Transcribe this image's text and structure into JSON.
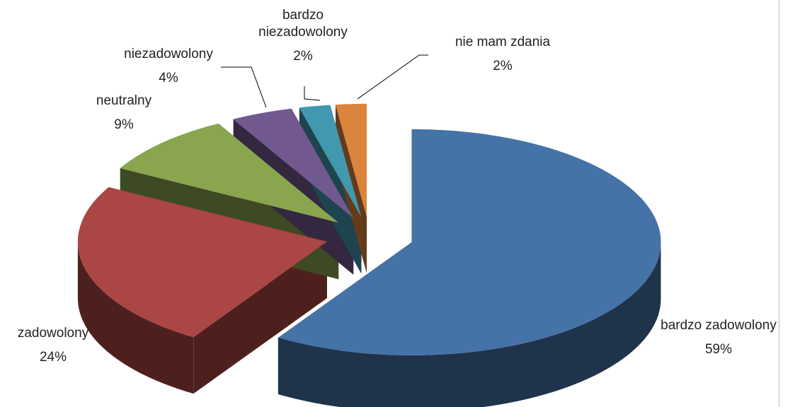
{
  "chart_data": {
    "type": "pie",
    "categories": [
      "bardzo zadowolony",
      "zadowolony",
      "neutralny",
      "niezadowolony",
      "bardzo niezadowolony",
      "nie mam zdania"
    ],
    "values": [
      59,
      24,
      9,
      4,
      2,
      2
    ],
    "value_labels": [
      "59%",
      "24%",
      "9%",
      "4%",
      "2%",
      "2%"
    ],
    "colors": [
      "#4572a7",
      "#aa4643",
      "#89a54e",
      "#71588f",
      "#4198af",
      "#db843d"
    ]
  }
}
